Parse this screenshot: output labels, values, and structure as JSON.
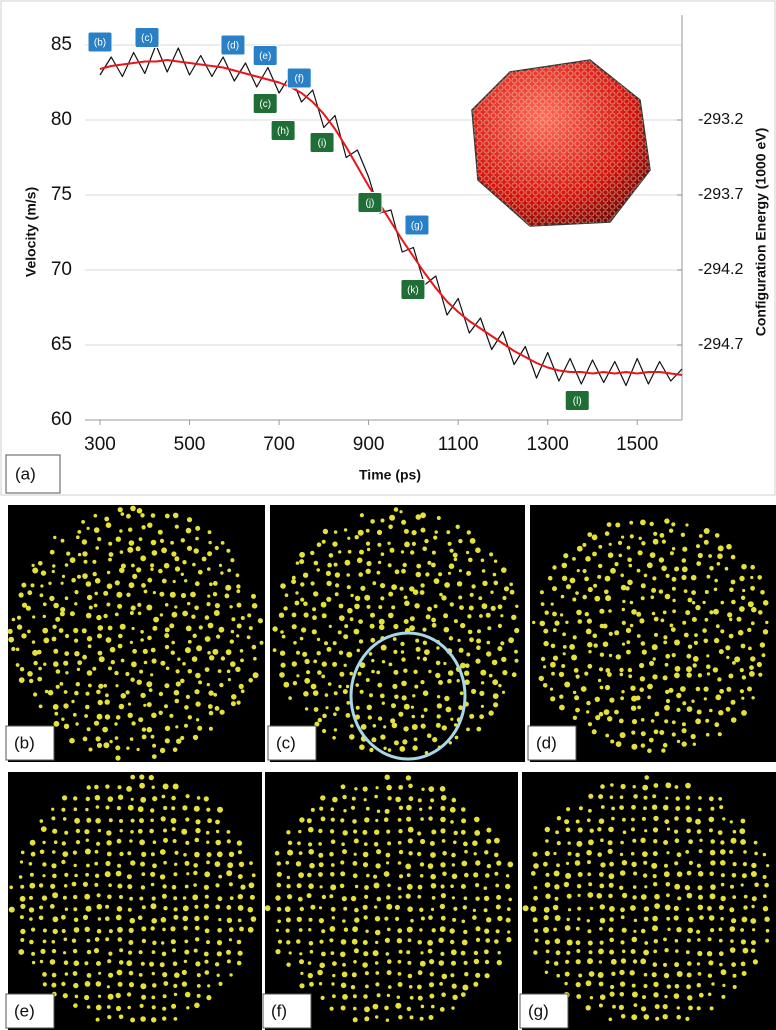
{
  "chart_data": {
    "type": "line",
    "xlabel": "Time (ps)",
    "ylabel": "Velocity (m/s)",
    "y2label": "Configuration Energy (1000 eV)",
    "panel_label": "(a)",
    "x": [
      300,
      325,
      350,
      375,
      400,
      425,
      450,
      475,
      500,
      525,
      550,
      575,
      600,
      625,
      650,
      675,
      700,
      725,
      750,
      775,
      800,
      825,
      850,
      875,
      900,
      925,
      950,
      975,
      1000,
      1025,
      1050,
      1075,
      1100,
      1125,
      1150,
      1175,
      1200,
      1225,
      1250,
      1275,
      1300,
      1325,
      1350,
      1375,
      1400,
      1425,
      1450,
      1475,
      1500,
      1525,
      1550,
      1575,
      1600
    ],
    "series": [
      {
        "color": "#111111",
        "values": [
          83.0,
          84.2,
          82.9,
          84.5,
          83.1,
          85.0,
          83.2,
          84.8,
          83.0,
          84.3,
          82.9,
          84.2,
          82.6,
          83.8,
          82.2,
          83.5,
          81.8,
          83.0,
          81.2,
          82.0,
          79.5,
          80.3,
          77.5,
          78.0,
          76.2,
          73.8,
          74.0,
          71.2,
          71.5,
          69.0,
          69.6,
          67.0,
          68.1,
          65.8,
          66.8,
          64.7,
          65.9,
          63.7,
          64.9,
          62.8,
          64.5,
          62.6,
          64.1,
          62.4,
          64.0,
          62.5,
          63.9,
          62.3,
          64.1,
          62.4,
          63.9,
          62.6,
          63.4
        ]
      },
      {
        "color": "#e8161b",
        "values": [
          83.4,
          83.6,
          83.7,
          83.8,
          83.9,
          83.9,
          84.0,
          83.9,
          83.8,
          83.7,
          83.6,
          83.5,
          83.3,
          83.1,
          82.9,
          82.7,
          82.5,
          82.2,
          81.8,
          81.2,
          80.4,
          79.4,
          78.2,
          76.9,
          75.6,
          74.4,
          73.2,
          72.0,
          70.9,
          69.8,
          68.8,
          67.9,
          67.2,
          66.6,
          66.1,
          65.6,
          65.1,
          64.6,
          64.2,
          63.8,
          63.5,
          63.3,
          63.2,
          63.2,
          63.1,
          63.2,
          63.1,
          63.2,
          63.1,
          63.2,
          63.2,
          63.1,
          63.0
        ]
      }
    ],
    "xlim": [
      300,
      1600
    ],
    "xticks": [
      300,
      500,
      700,
      900,
      1100,
      1300,
      1500
    ],
    "ylim": [
      60,
      87
    ],
    "yticks": [
      60,
      65,
      70,
      75,
      80,
      85
    ],
    "y2lim": [
      -295.2,
      -292.5
    ],
    "y2ticks": [
      -294.7,
      -294.2,
      -293.7,
      -293.2
    ],
    "grid": true,
    "annotations": [
      {
        "text": "(b)",
        "x": 300,
        "y": 85.2,
        "color": "#2a80c6"
      },
      {
        "text": "(c)",
        "x": 405,
        "y": 85.5,
        "color": "#2a80c6"
      },
      {
        "text": "(d)",
        "x": 597,
        "y": 85.0,
        "color": "#2a80c6"
      },
      {
        "text": "(e)",
        "x": 669,
        "y": 84.3,
        "color": "#2a80c6"
      },
      {
        "text": "(f)",
        "x": 745,
        "y": 82.8,
        "color": "#2a80c6"
      },
      {
        "text": "(c)",
        "x": 669,
        "y": 81.1,
        "color": "#1e6e36"
      },
      {
        "text": "(h)",
        "x": 709,
        "y": 79.3,
        "color": "#1e6e36"
      },
      {
        "text": "(i)",
        "x": 796,
        "y": 78.5,
        "color": "#1e6e36"
      },
      {
        "text": "(j)",
        "x": 903,
        "y": 74.5,
        "color": "#1e6e36"
      },
      {
        "text": "(g)",
        "x": 1008,
        "y": 73.0,
        "color": "#2a80c6"
      },
      {
        "text": "(k)",
        "x": 999,
        "y": 68.7,
        "color": "#1e6e36"
      },
      {
        "text": "(l)",
        "x": 1366,
        "y": 61.3,
        "color": "#1e6e36"
      }
    ]
  },
  "panels": [
    {
      "label": "(b)"
    },
    {
      "label": "(c)"
    },
    {
      "label": "(d)"
    },
    {
      "label": "(e)"
    },
    {
      "label": "(f)"
    },
    {
      "label": "(g)"
    }
  ]
}
